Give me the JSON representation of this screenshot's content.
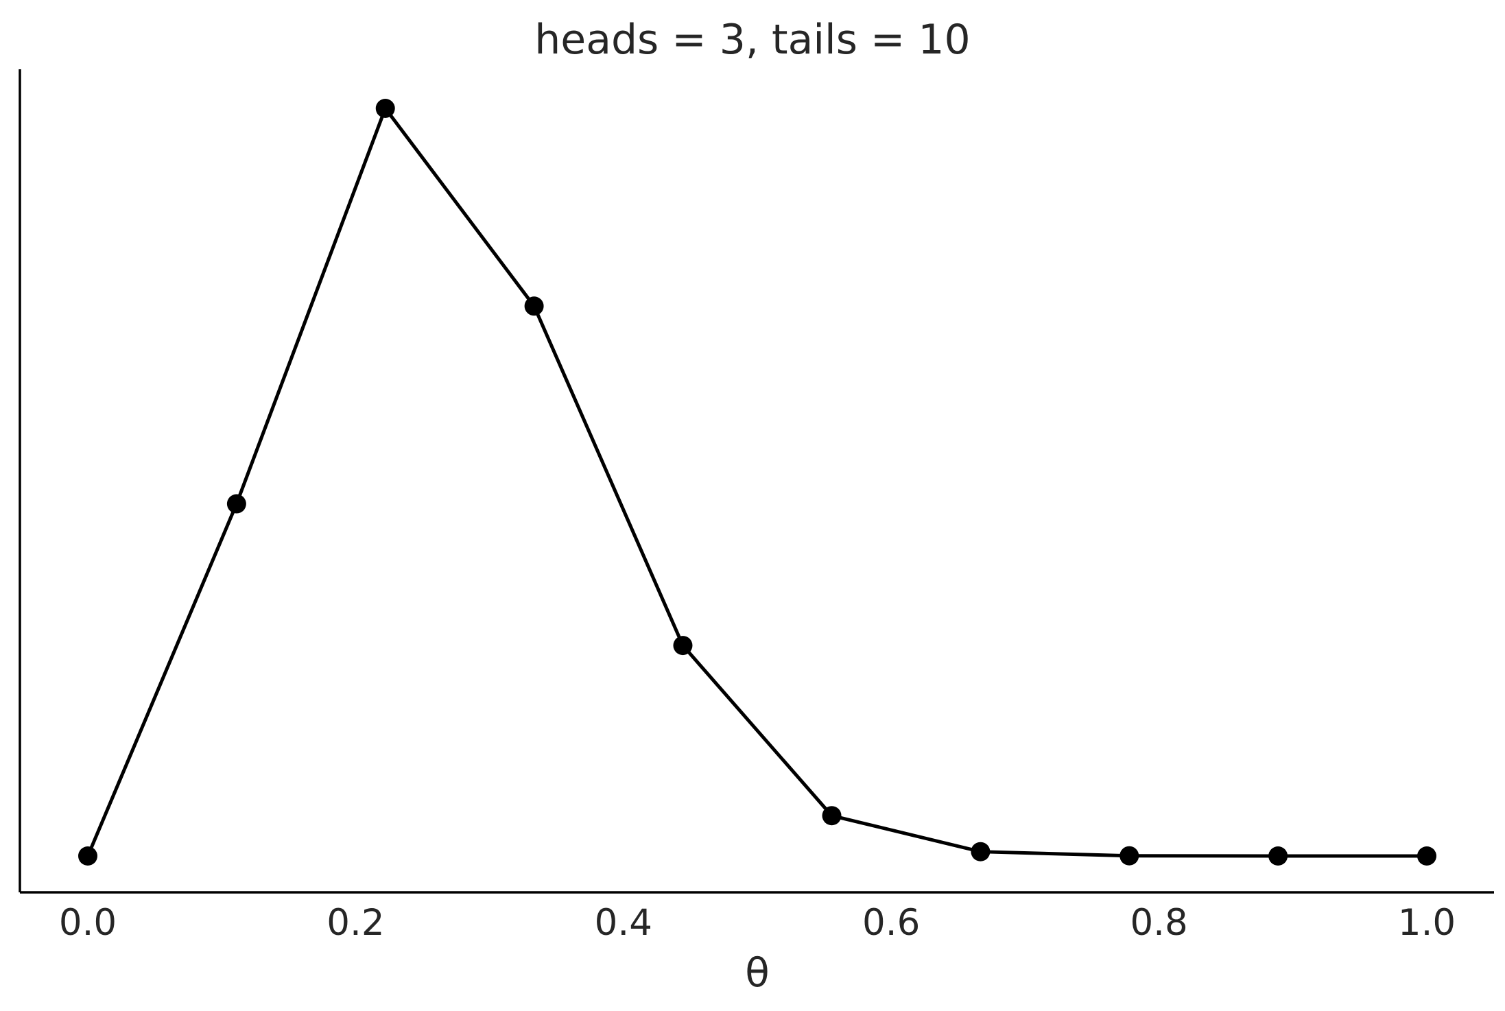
{
  "chart_data": {
    "type": "line",
    "title": "heads = 3, tails = 10",
    "xlabel": "θ",
    "ylabel": "",
    "xlim": [
      -0.05,
      1.05
    ],
    "ylim": [
      -0.02,
      0.4
    ],
    "x_ticks": [
      "0.0",
      "0.2",
      "0.4",
      "0.6",
      "0.8",
      "1.0"
    ],
    "y_ticks_visible": false,
    "grid": false,
    "series": [
      {
        "color": "#000000",
        "marker": "circle",
        "x": [
          0.0,
          0.1111,
          0.2222,
          0.3333,
          0.4444,
          0.5556,
          0.6667,
          0.7778,
          0.8889,
          1.0
        ],
        "y": [
          0.0,
          0.179,
          0.38,
          0.2795,
          0.107,
          0.0205,
          0.0022,
          0.0001,
          0.0,
          0.0
        ]
      }
    ]
  }
}
